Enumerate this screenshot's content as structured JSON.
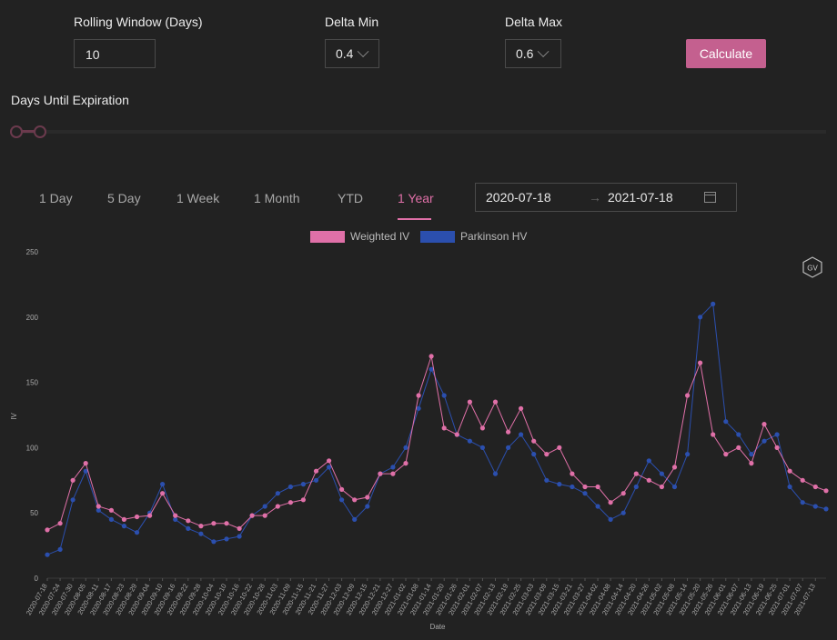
{
  "controls": {
    "rolling_label": "Rolling Window (Days)",
    "rolling_value": "10",
    "delta_min_label": "Delta Min",
    "delta_min_value": "0.4",
    "delta_max_label": "Delta Max",
    "delta_max_value": "0.6",
    "calculate_label": "Calculate",
    "dte_label": "Days Until Expiration"
  },
  "tabs": [
    "1 Day",
    "5 Day",
    "1 Week",
    "1 Month",
    "YTD",
    "1 Year"
  ],
  "active_tab": "1 Year",
  "date_range": {
    "start": "2020-07-18",
    "end": "2021-07-18"
  },
  "badge": "GV",
  "colors": {
    "accent": "#c4608f",
    "iv": "#e070a8",
    "hv": "#2b4fae",
    "bg": "#222222"
  },
  "chart_data": {
    "type": "line",
    "xlabel": "Date",
    "ylabel": "IV",
    "ylim": [
      0,
      250
    ],
    "yticks": [
      0,
      50,
      100,
      150,
      200,
      250
    ],
    "grid": false,
    "legend": "top-center",
    "x_tick_labels": [
      "2020-07-18",
      "2020-07-24",
      "2020-07-30",
      "2020-08-05",
      "2020-08-11",
      "2020-08-17",
      "2020-08-23",
      "2020-08-29",
      "2020-09-04",
      "2020-09-10",
      "2020-09-16",
      "2020-09-22",
      "2020-09-28",
      "2020-10-04",
      "2020-10-10",
      "2020-10-16",
      "2020-10-22",
      "2020-10-28",
      "2020-11-03",
      "2020-11-09",
      "2020-11-15",
      "2020-11-21",
      "2020-11-27",
      "2020-12-03",
      "2020-12-09",
      "2020-12-15",
      "2020-12-21",
      "2020-12-27",
      "2021-01-02",
      "2021-01-08",
      "2021-01-14",
      "2021-01-20",
      "2021-01-26",
      "2021-02-01",
      "2021-02-07",
      "2021-02-13",
      "2021-02-19",
      "2021-02-25",
      "2021-03-03",
      "2021-03-09",
      "2021-03-15",
      "2021-03-21",
      "2021-03-27",
      "2021-04-02",
      "2021-04-08",
      "2021-04-14",
      "2021-04-20",
      "2021-04-26",
      "2021-05-02",
      "2021-05-08",
      "2021-05-14",
      "2021-05-20",
      "2021-05-26",
      "2021-06-01",
      "2021-06-07",
      "2021-06-13",
      "2021-06-19",
      "2021-06-25",
      "2021-07-01",
      "2021-07-07",
      "2021-07-13"
    ],
    "series": [
      {
        "name": "Weighted IV",
        "color": "#e070a8",
        "x": [
          "2020-07-18",
          "2020-07-24",
          "2020-07-30",
          "2020-08-05",
          "2020-08-11",
          "2020-08-17",
          "2020-08-23",
          "2020-08-29",
          "2020-09-04",
          "2020-09-10",
          "2020-09-16",
          "2020-09-22",
          "2020-09-28",
          "2020-10-04",
          "2020-10-10",
          "2020-10-16",
          "2020-10-22",
          "2020-10-28",
          "2020-11-03",
          "2020-11-09",
          "2020-11-15",
          "2020-11-21",
          "2020-11-27",
          "2020-12-03",
          "2020-12-09",
          "2020-12-15",
          "2020-12-21",
          "2020-12-27",
          "2021-01-02",
          "2021-01-08",
          "2021-01-14",
          "2021-01-20",
          "2021-01-26",
          "2021-02-01",
          "2021-02-07",
          "2021-02-13",
          "2021-02-19",
          "2021-02-25",
          "2021-03-03",
          "2021-03-09",
          "2021-03-15",
          "2021-03-21",
          "2021-03-27",
          "2021-04-02",
          "2021-04-08",
          "2021-04-14",
          "2021-04-20",
          "2021-04-26",
          "2021-05-02",
          "2021-05-08",
          "2021-05-14",
          "2021-05-20",
          "2021-05-26",
          "2021-06-01",
          "2021-06-07",
          "2021-06-13",
          "2021-06-19",
          "2021-06-25",
          "2021-07-01",
          "2021-07-07",
          "2021-07-13",
          "2021-07-18"
        ],
        "values": [
          37,
          42,
          75,
          88,
          55,
          52,
          45,
          47,
          48,
          65,
          48,
          44,
          40,
          42,
          42,
          38,
          48,
          48,
          55,
          58,
          60,
          82,
          90,
          68,
          60,
          62,
          80,
          80,
          88,
          140,
          170,
          115,
          110,
          135,
          115,
          135,
          112,
          130,
          105,
          95,
          100,
          80,
          70,
          70,
          58,
          65,
          80,
          75,
          70,
          85,
          140,
          165,
          110,
          95,
          100,
          88,
          118,
          100,
          82,
          75,
          70,
          67
        ]
      },
      {
        "name": "Parkinson HV",
        "color": "#2b4fae",
        "x": [
          "2020-07-18",
          "2020-07-24",
          "2020-07-30",
          "2020-08-05",
          "2020-08-11",
          "2020-08-17",
          "2020-08-23",
          "2020-08-29",
          "2020-09-04",
          "2020-09-10",
          "2020-09-16",
          "2020-09-22",
          "2020-09-28",
          "2020-10-04",
          "2020-10-10",
          "2020-10-16",
          "2020-10-22",
          "2020-10-28",
          "2020-11-03",
          "2020-11-09",
          "2020-11-15",
          "2020-11-21",
          "2020-11-27",
          "2020-12-03",
          "2020-12-09",
          "2020-12-15",
          "2020-12-21",
          "2020-12-27",
          "2021-01-02",
          "2021-01-08",
          "2021-01-14",
          "2021-01-20",
          "2021-01-26",
          "2021-02-01",
          "2021-02-07",
          "2021-02-13",
          "2021-02-19",
          "2021-02-25",
          "2021-03-03",
          "2021-03-09",
          "2021-03-15",
          "2021-03-21",
          "2021-03-27",
          "2021-04-02",
          "2021-04-08",
          "2021-04-14",
          "2021-04-20",
          "2021-04-26",
          "2021-05-02",
          "2021-05-08",
          "2021-05-14",
          "2021-05-20",
          "2021-05-26",
          "2021-06-01",
          "2021-06-07",
          "2021-06-13",
          "2021-06-19",
          "2021-06-25",
          "2021-07-01",
          "2021-07-07",
          "2021-07-13",
          "2021-07-18"
        ],
        "values": [
          18,
          22,
          60,
          82,
          52,
          45,
          40,
          35,
          50,
          72,
          45,
          38,
          34,
          28,
          30,
          32,
          48,
          55,
          65,
          70,
          72,
          75,
          85,
          60,
          45,
          55,
          80,
          85,
          100,
          130,
          160,
          140,
          110,
          105,
          100,
          80,
          100,
          110,
          95,
          75,
          72,
          70,
          65,
          55,
          45,
          50,
          70,
          90,
          80,
          70,
          95,
          200,
          210,
          120,
          110,
          95,
          105,
          110,
          70,
          58,
          55,
          53
        ]
      }
    ]
  }
}
